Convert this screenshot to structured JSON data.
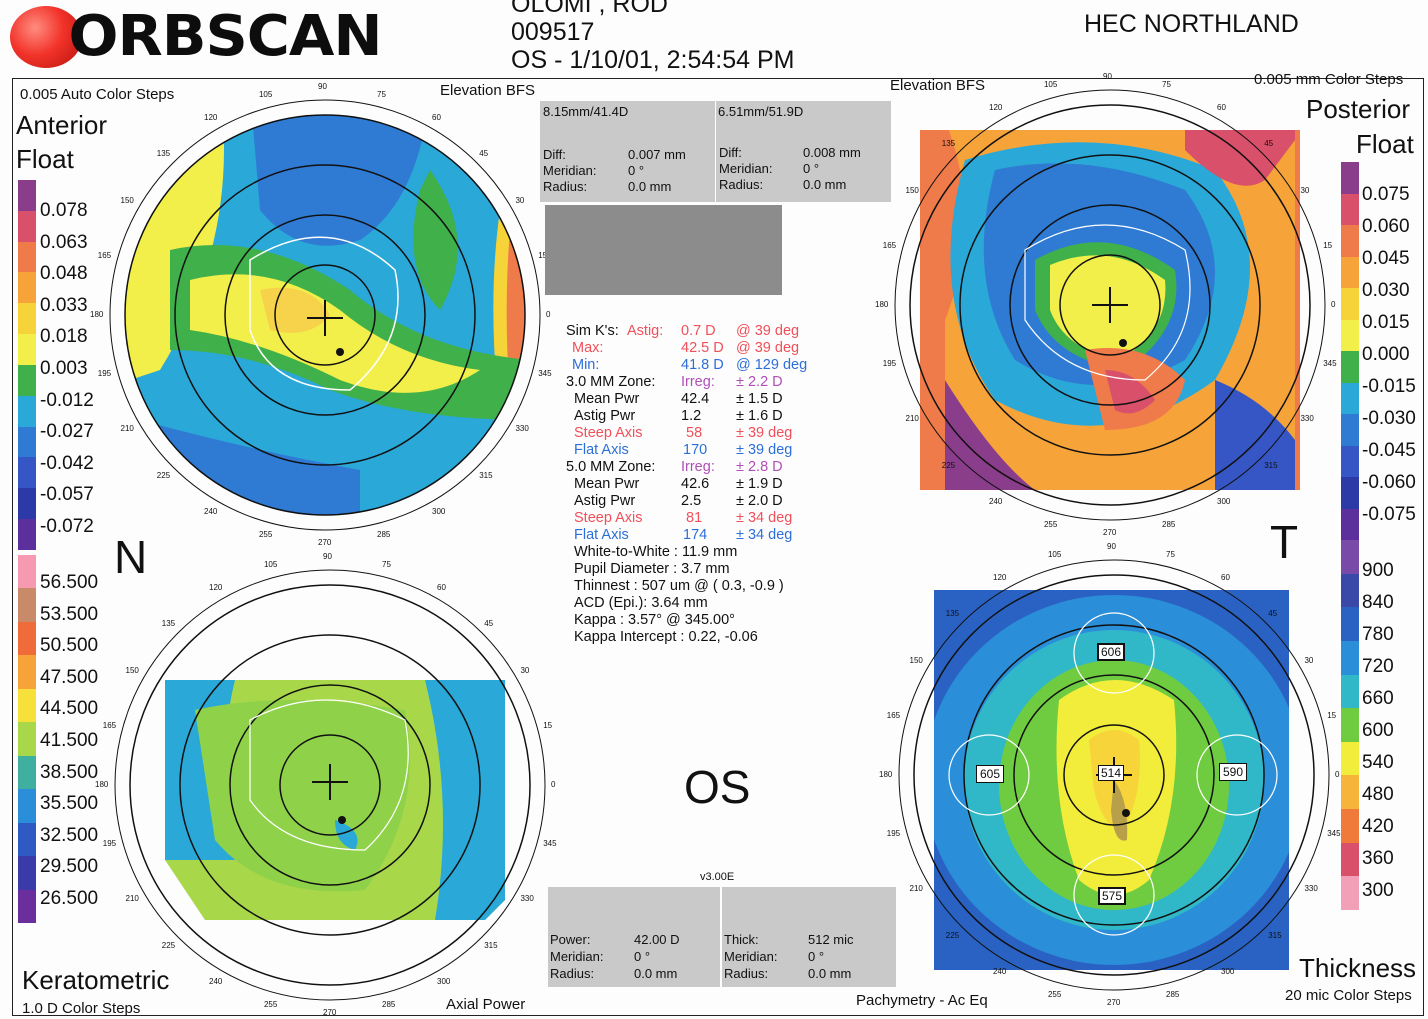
{
  "header": {
    "brand": "ORBSCAN",
    "name_line": "OLOMI , ROD",
    "id": "009517",
    "exam": "OS - 1/10/01, 2:54:54 PM",
    "clinic": "HEC NORTHLAND"
  },
  "maps": {
    "anterior": {
      "title1": "Anterior",
      "title2": "Float",
      "steps": "0.005 Auto Color Steps",
      "type": "Elevation BFS",
      "scale": [
        "0.078",
        "0.063",
        "0.048",
        "0.033",
        "0.018",
        "0.003",
        "-0.012",
        "-0.027",
        "-0.042",
        "-0.057",
        "-0.072"
      ]
    },
    "posterior": {
      "title1": "Posterior",
      "title2": "Float",
      "steps": "0.005 mm Color Steps",
      "type": "Elevation BFS",
      "scale": [
        "0.075",
        "0.060",
        "0.045",
        "0.030",
        "0.015",
        "0.000",
        "-0.015",
        "-0.030",
        "-0.045",
        "-0.060",
        "-0.075"
      ]
    },
    "keratometric": {
      "title": "Keratometric",
      "steps": "1.0 D Color Steps",
      "type": "Axial Power",
      "scale": [
        "56.500",
        "53.500",
        "50.500",
        "47.500",
        "44.500",
        "41.500",
        "38.500",
        "35.500",
        "32.500",
        "29.500",
        "26.500"
      ]
    },
    "thickness": {
      "title": "Thickness",
      "steps": "20 mic Color Steps",
      "type": "Pachymetry - Ac Eq",
      "scale": [
        "900",
        "840",
        "780",
        "720",
        "660",
        "600",
        "540",
        "480",
        "420",
        "360",
        "300"
      ],
      "points": {
        "top": "606",
        "left": "605",
        "center": "514",
        "right": "590",
        "bottom": "575"
      }
    }
  },
  "side_labels": {
    "nasal": "N",
    "temporal": "T",
    "eye": "OS"
  },
  "ticks": [
    "90",
    "75",
    "60",
    "45",
    "30",
    "15",
    "0",
    "345",
    "330",
    "315",
    "300",
    "285",
    "270",
    "255",
    "240",
    "225",
    "210",
    "195",
    "180",
    "165",
    "150",
    "135",
    "120",
    "105"
  ],
  "boxes": {
    "top_left": {
      "header": "8.15mm/41.4D",
      "diff_label": "Diff:",
      "diff": "0.007 mm",
      "meridian_label": "Meridian:",
      "meridian": "0 °",
      "radius_label": "Radius:",
      "radius": "0.0 mm"
    },
    "top_right": {
      "header": "6.51mm/51.9D",
      "diff_label": "Diff:",
      "diff": "0.008 mm",
      "meridian_label": "Meridian:",
      "meridian": "0 °",
      "radius_label": "Radius:",
      "radius": "0.0 mm"
    },
    "bottom_left": {
      "power_label": "Power:",
      "power": "42.00 D",
      "meridian_label": "Meridian:",
      "meridian": "0 °",
      "radius_label": "Radius:",
      "radius": "0.0 mm"
    },
    "bottom_right": {
      "thick_label": "Thick:",
      "thick": "512 mic",
      "meridian_label": "Meridian:",
      "meridian": "0 °",
      "radius_label": "Radius:",
      "radius": "0.0 mm"
    },
    "version": "v3.00E"
  },
  "stats": {
    "simk_label": "Sim K's:",
    "astig_label": "Astig:",
    "astig": "0.7 D",
    "astig_axis": "@ 39 deg",
    "max_label": "Max:",
    "max": "42.5 D",
    "max_axis": "@ 39 deg",
    "min_label": "Min:",
    "min": "41.8 D",
    "min_axis": "@ 129 deg",
    "z3_label": "3.0 MM Zone:",
    "z3_irreg_label": "Irreg:",
    "z3_irreg": "± 2.2 D",
    "z3_mean_label": "Mean Pwr",
    "z3_mean": "42.4",
    "z3_mean_pm": "± 1.5 D",
    "z3_astig_label": "Astig Pwr",
    "z3_astig": "1.2",
    "z3_astig_pm": "± 1.6 D",
    "z3_steep_label": "Steep Axis",
    "z3_steep": "58",
    "z3_steep_pm": "± 39 deg",
    "z3_flat_label": "Flat Axis",
    "z3_flat": "170",
    "z3_flat_pm": "± 39 deg",
    "z5_label": "5.0 MM Zone:",
    "z5_irreg_label": "Irreg:",
    "z5_irreg": "± 2.8 D",
    "z5_mean_label": "Mean Pwr",
    "z5_mean": "42.6",
    "z5_mean_pm": "± 1.9 D",
    "z5_astig_label": "Astig Pwr",
    "z5_astig": "2.5",
    "z5_astig_pm": "± 2.0 D",
    "z5_steep_label": "Steep Axis",
    "z5_steep": "81",
    "z5_steep_pm": "± 34 deg",
    "z5_flat_label": "Flat Axis",
    "z5_flat": "174",
    "z5_flat_pm": "± 34 deg",
    "wtw": "White-to-White : 11.9 mm",
    "pupil": "Pupil Diameter :  3.7 mm",
    "thinnest": "Thinnest : 507 um @ ( 0.3, -0.9 )",
    "acd": "ACD (Epi.): 3.64 mm",
    "kappa": "Kappa : 3.57° @ 345.00°",
    "kappa_int": "Kappa Intercept : 0.22, -0.06"
  },
  "colors": {
    "float_scale": [
      "#8a3d8a",
      "#d8506a",
      "#ef7a4a",
      "#f6a43a",
      "#f7d33a",
      "#f2ee4a",
      "#3fb04a",
      "#2aa8d8",
      "#2f7bd4",
      "#3556c4",
      "#2c3aa8",
      "#5b2f9c"
    ],
    "power_scale": [
      "#f59ab0",
      "#c98a6a",
      "#ef6b3a",
      "#f6a43a",
      "#f7e03a",
      "#a8d84a",
      "#3fb0a0",
      "#2a8ed8",
      "#2f5ac4",
      "#3a3aa8",
      "#6a2f9c"
    ],
    "thick_scale": [
      "#7a4aa8",
      "#3a48a8",
      "#2a62c4",
      "#2a8ed8",
      "#30b8c8",
      "#6fcc40",
      "#f2ec3a",
      "#f6b43a",
      "#f07a3a",
      "#d8506a",
      "#f2a0b8"
    ]
  }
}
